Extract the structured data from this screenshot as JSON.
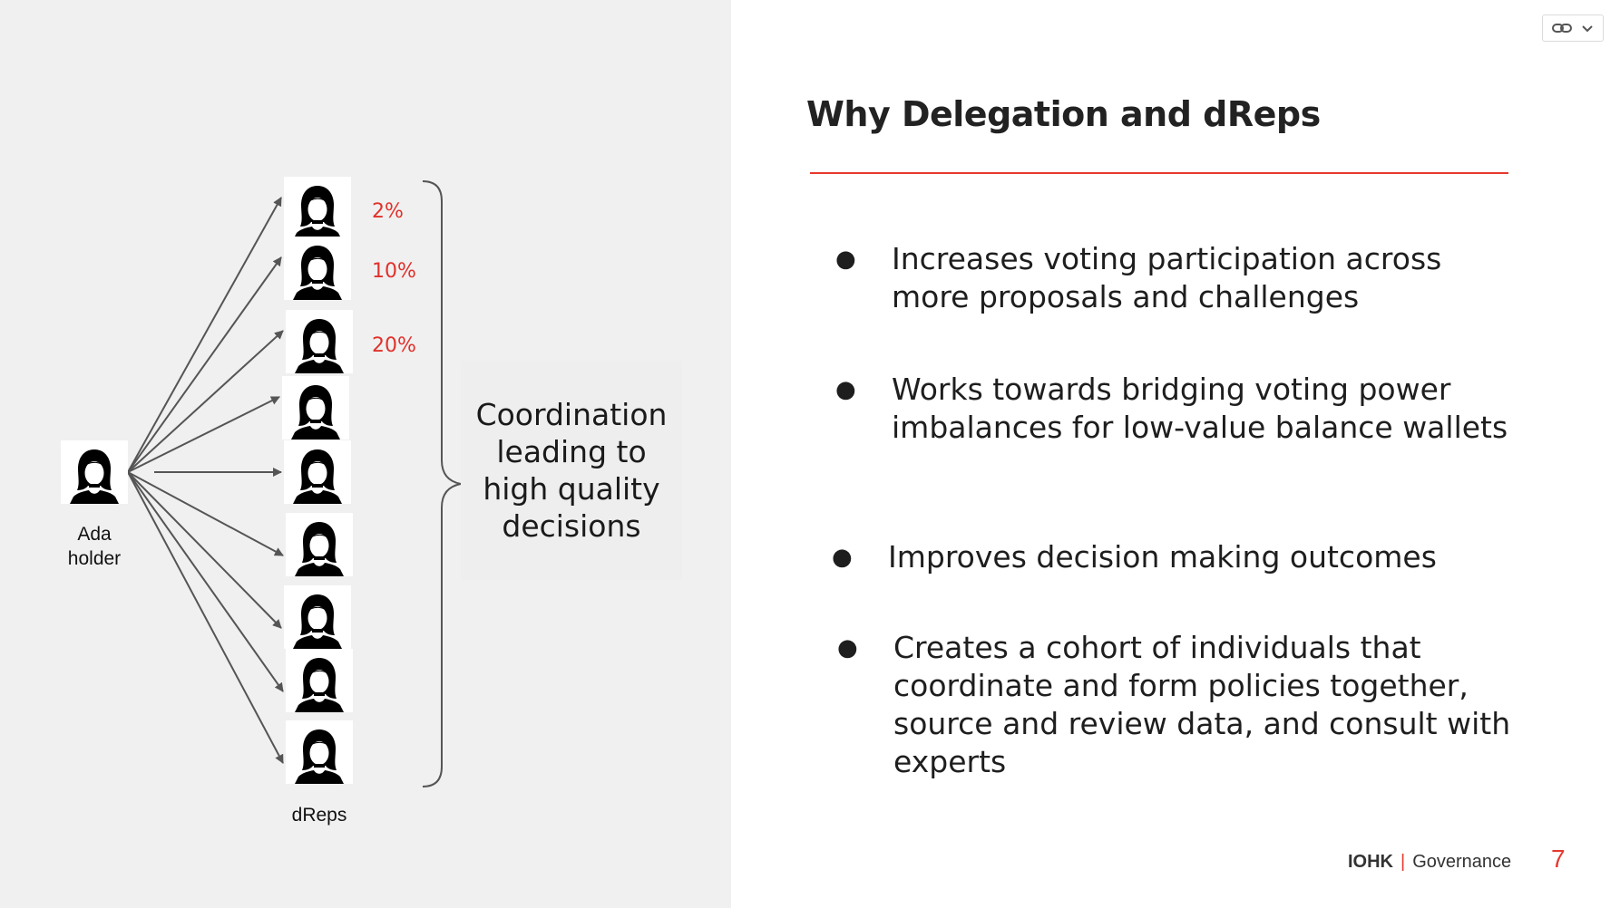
{
  "title": "Why Delegation and dReps",
  "diagram": {
    "source_label": "Ada holder",
    "target_label": "dReps",
    "drep_count": 9,
    "percentages": [
      "2%",
      "10%",
      "20%"
    ],
    "coordination_text": "Coordination leading to high quality decisions",
    "icon": "person-silhouette-icon"
  },
  "bullets": [
    "Increases voting participation across more proposals and challenges",
    "Works towards bridging voting power imbalances for low-value balance wallets",
    "Improves decision making outcomes",
    "Creates a cohort of individuals that coordinate and form policies together, source and review data, and consult with experts"
  ],
  "footer": {
    "brand": "IOHK",
    "separator": "|",
    "section": "Governance"
  },
  "page_number": "7",
  "controls": {
    "link_icon": "link-icon",
    "menu_icon": "chevron-down-icon"
  },
  "colors": {
    "accent": "#e5392f",
    "left_panel": "#f0f0f0"
  }
}
